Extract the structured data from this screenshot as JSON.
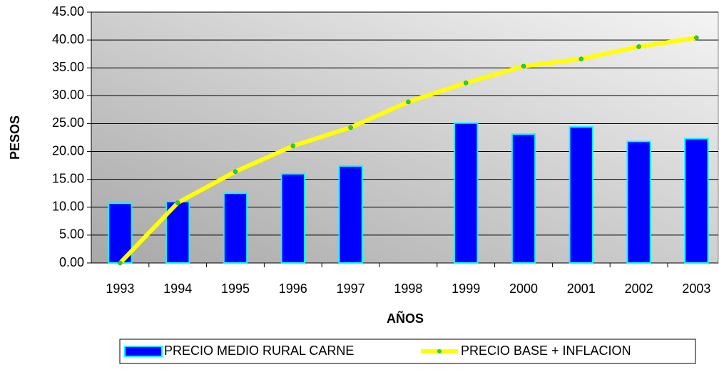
{
  "chart_data": {
    "type": "bar_line",
    "categories": [
      "1993",
      "1994",
      "1995",
      "1996",
      "1997",
      "1998",
      "1999",
      "2000",
      "2001",
      "2002",
      "2003"
    ],
    "series": [
      {
        "name": "PRECIO MEDIO RURAL CARNE",
        "type": "bar",
        "color": "#0000ff",
        "edge_color": "#00ffff",
        "values": [
          10.7,
          11.0,
          12.5,
          16.0,
          17.4,
          null,
          25.1,
          23.1,
          24.4,
          21.8,
          22.3
        ]
      },
      {
        "name": "PRECIO BASE + INFLACION",
        "type": "line",
        "color": "#ffff00",
        "marker_color": "#33cc33",
        "values": [
          0,
          10.8,
          16.4,
          21.0,
          24.3,
          28.9,
          32.3,
          35.3,
          36.6,
          38.8,
          40.4
        ]
      }
    ],
    "x_label": "AÑOS",
    "y_label": "PESOS",
    "ylim": [
      0,
      45
    ],
    "yticks": [
      {
        "value": 0,
        "label": "0.00"
      },
      {
        "value": 5,
        "label": "5.00"
      },
      {
        "value": 10,
        "label": "10.00"
      },
      {
        "value": 15,
        "label": "15.00"
      },
      {
        "value": 20,
        "label": "20.00"
      },
      {
        "value": 25,
        "label": "25.00"
      },
      {
        "value": 30,
        "label": "30.00"
      },
      {
        "value": 35,
        "label": "35.00"
      },
      {
        "value": 40,
        "label": "40.00"
      },
      {
        "value": 45,
        "label": "45.00"
      }
    ],
    "grid": true,
    "legend": "bottom"
  }
}
